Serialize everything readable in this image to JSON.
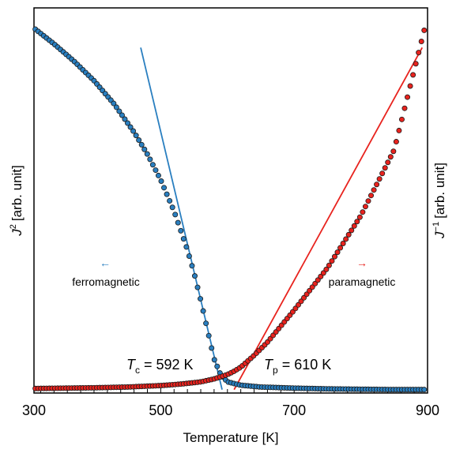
{
  "chart_data": {
    "type": "scatter",
    "title": "",
    "xlabel": "Temperature [K]",
    "ylabel_left": "J² [arb. unit]",
    "ylabel_left_base": "J",
    "ylabel_left_sup": "2",
    "ylabel_left_unit": "[arb. unit]",
    "ylabel_right": "J⁻¹ [arb. unit]",
    "ylabel_right_base": "J",
    "ylabel_right_sup": "−1",
    "ylabel_right_unit": "[arb. unit]",
    "xlim": [
      310,
      900
    ],
    "ylim_left": [
      0,
      1
    ],
    "ylim_right": [
      0,
      1
    ],
    "x_ticks": [
      300,
      500,
      700,
      900
    ],
    "x_tick_labels": [
      "300",
      "500",
      "700",
      "900"
    ],
    "grid": false,
    "left_axis_color": "#2a7fc0",
    "right_axis_color": "#e8231e",
    "series": [
      {
        "axis": "left",
        "color": "#2a7fc0",
        "x": [
          312,
          340,
          370,
          400,
          430,
          460,
          480,
          500,
          520,
          540,
          550,
          560,
          570,
          580,
          590,
          600,
          620,
          650,
          700,
          750,
          800,
          850,
          895
        ],
        "y": [
          0.985,
          0.945,
          0.898,
          0.845,
          0.782,
          0.705,
          0.645,
          0.575,
          0.49,
          0.385,
          0.322,
          0.248,
          0.168,
          0.088,
          0.045,
          0.026,
          0.017,
          0.012,
          0.009,
          0.007,
          0.006,
          0.005,
          0.005
        ]
      },
      {
        "axis": "right",
        "color": "#e8231e",
        "x": [
          312,
          400,
          450,
          500,
          530,
          560,
          580,
          600,
          610,
          620,
          640,
          660,
          700,
          750,
          800,
          850,
          895
        ],
        "y": [
          0.008,
          0.01,
          0.012,
          0.016,
          0.02,
          0.026,
          0.034,
          0.046,
          0.055,
          0.066,
          0.098,
          0.134,
          0.221,
          0.336,
          0.478,
          0.657,
          0.982
        ]
      }
    ],
    "fit_lines": [
      {
        "axis": "left",
        "color": "#2a7fc0",
        "x": [
          470,
          592
        ],
        "y": [
          0.935,
          0.005
        ]
      },
      {
        "axis": "right",
        "color": "#e8231e",
        "x": [
          610,
          892
        ],
        "y": [
          0.005,
          0.935
        ]
      }
    ],
    "annotations": {
      "tc_base": "T",
      "tc_sub": "c",
      "tc_value": " = 592 K",
      "tp_base": "T",
      "tp_sub": "p",
      "tp_value": " = 610 K",
      "left_arrow": "←",
      "right_arrow": "→",
      "ferro_label": "ferromagnetic",
      "para_label": "paramagnetic"
    }
  }
}
